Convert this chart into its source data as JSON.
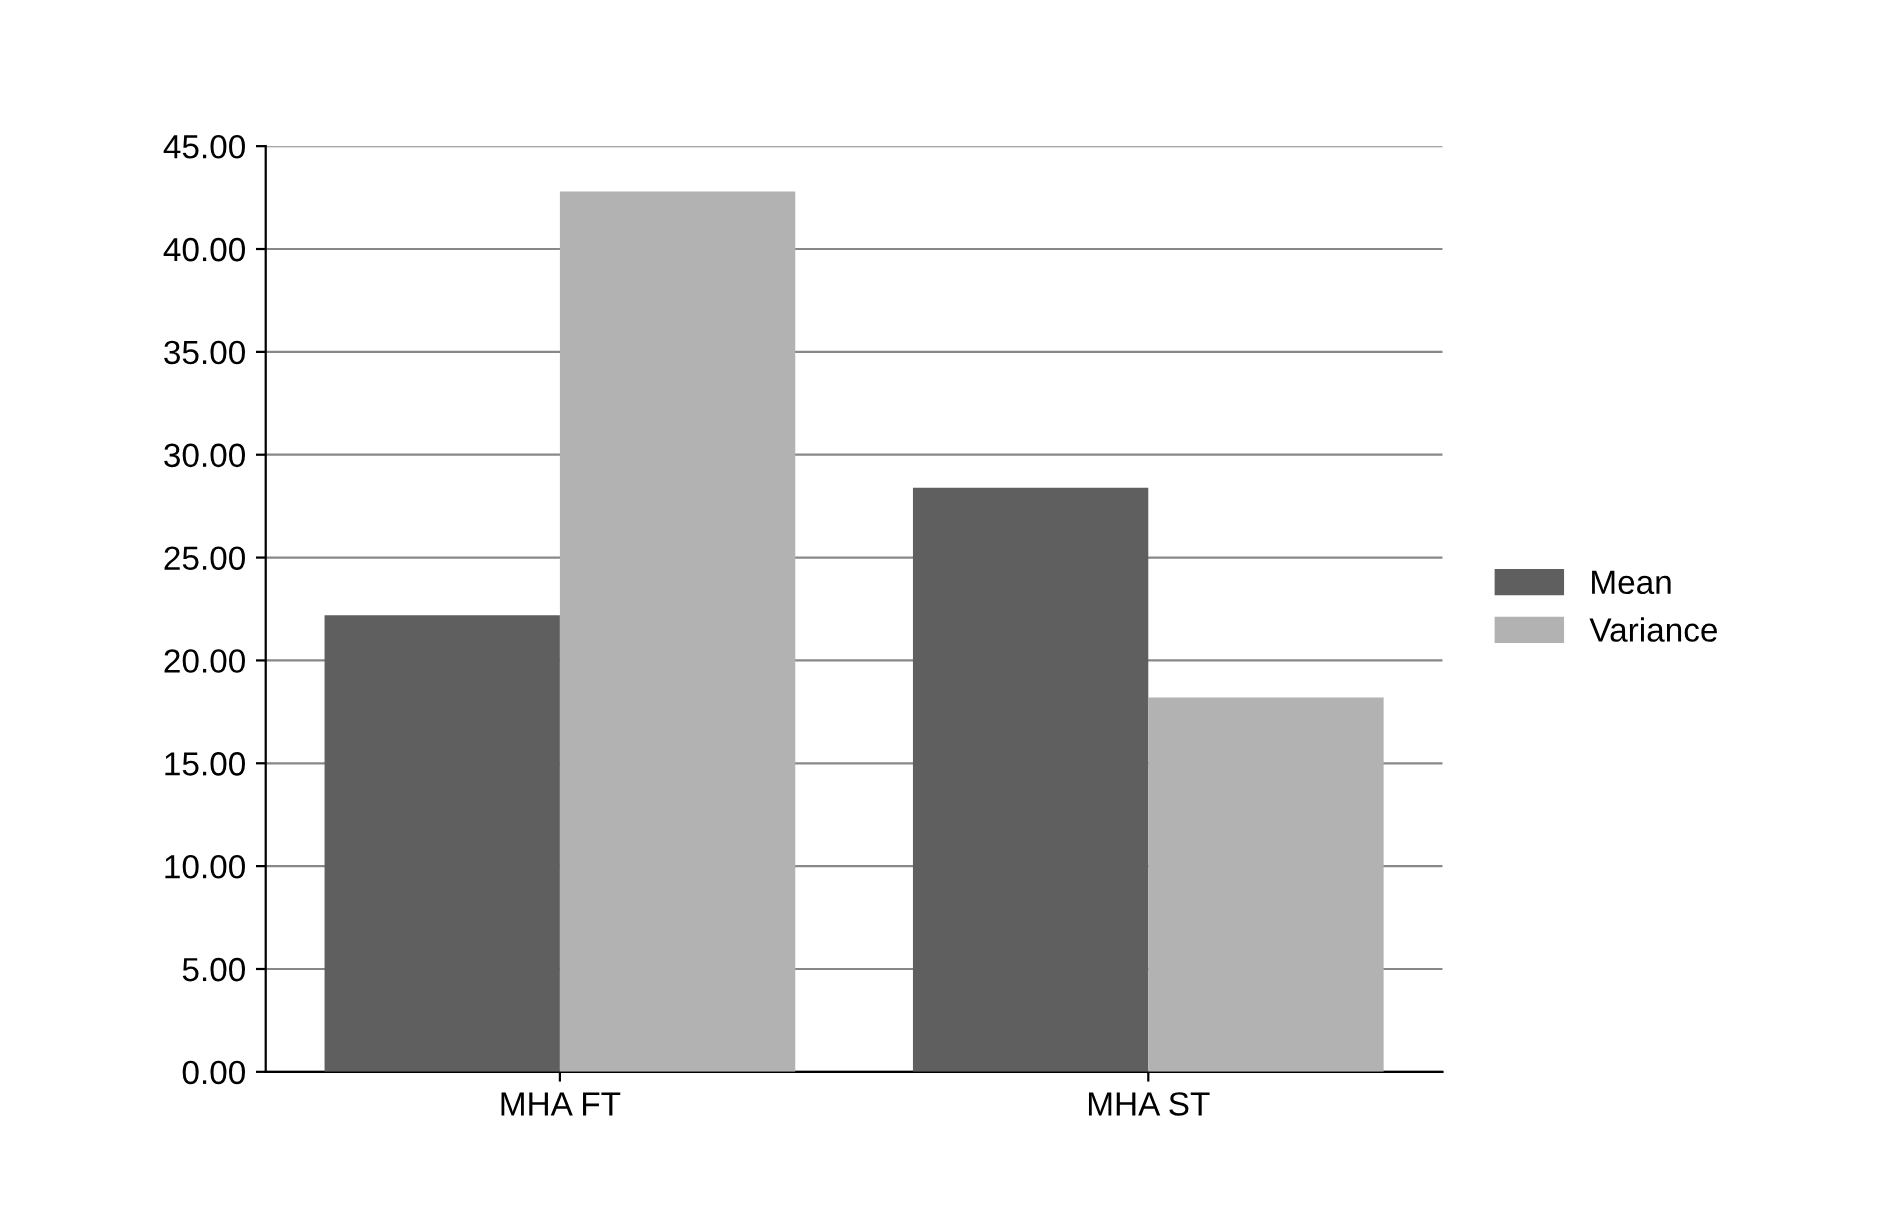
{
  "chart_data": {
    "type": "bar",
    "categories": [
      "MHA FT",
      "MHA ST"
    ],
    "series": [
      {
        "name": "Mean",
        "color": "#5f5f5f",
        "values": [
          22.2,
          28.4
        ]
      },
      {
        "name": "Variance",
        "color": "#b2b2b2",
        "values": [
          42.8,
          18.2
        ]
      }
    ],
    "ylim": [
      0,
      45
    ],
    "yticks": [
      {
        "value": 0,
        "label": "0.00"
      },
      {
        "value": 5,
        "label": "5.00"
      },
      {
        "value": 10,
        "label": "10.00"
      },
      {
        "value": 15,
        "label": "15.00"
      },
      {
        "value": 20,
        "label": "20.00"
      },
      {
        "value": 25,
        "label": "25.00"
      },
      {
        "value": 30,
        "label": "30.00"
      },
      {
        "value": 35,
        "label": "35.00"
      },
      {
        "value": 40,
        "label": "40.00"
      },
      {
        "value": 45,
        "label": "45.00"
      }
    ],
    "grid": "y",
    "legend": "right"
  }
}
